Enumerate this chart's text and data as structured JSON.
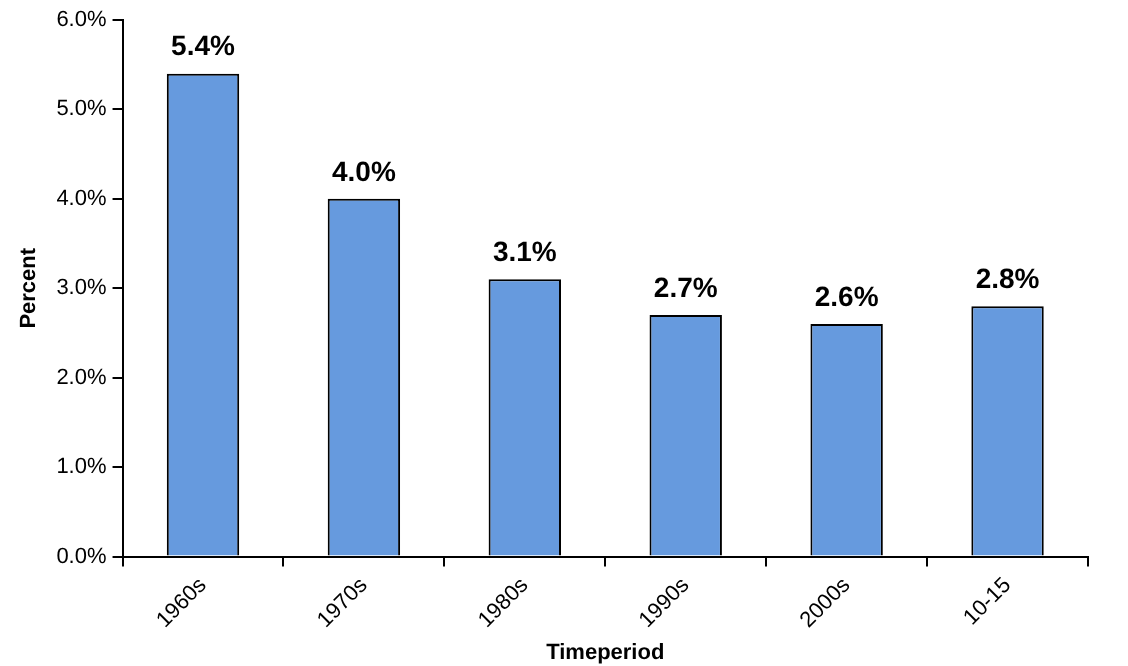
{
  "chart_data": {
    "type": "bar",
    "xlabel": "Timeperiod",
    "ylabel": "Percent",
    "categories": [
      "1960s",
      "1970s",
      "1980s",
      "1990s",
      "2000s",
      "10-15"
    ],
    "values": [
      5.4,
      4.0,
      3.1,
      2.7,
      2.6,
      2.8
    ],
    "value_labels": [
      "5.4%",
      "4.0%",
      "3.1%",
      "2.7%",
      "2.6%",
      "2.8%"
    ],
    "color": "#669ade",
    "ylim": [
      0,
      6
    ],
    "yticks": [
      {
        "value": 0,
        "label": "0.0%"
      },
      {
        "value": 1,
        "label": "1.0%"
      },
      {
        "value": 2,
        "label": "2.0%"
      },
      {
        "value": 3,
        "label": "3.0%"
      },
      {
        "value": 4,
        "label": "4.0%"
      },
      {
        "value": 5,
        "label": "5.0%"
      },
      {
        "value": 6,
        "label": "6.0%"
      }
    ],
    "grid": false,
    "legend": false
  }
}
